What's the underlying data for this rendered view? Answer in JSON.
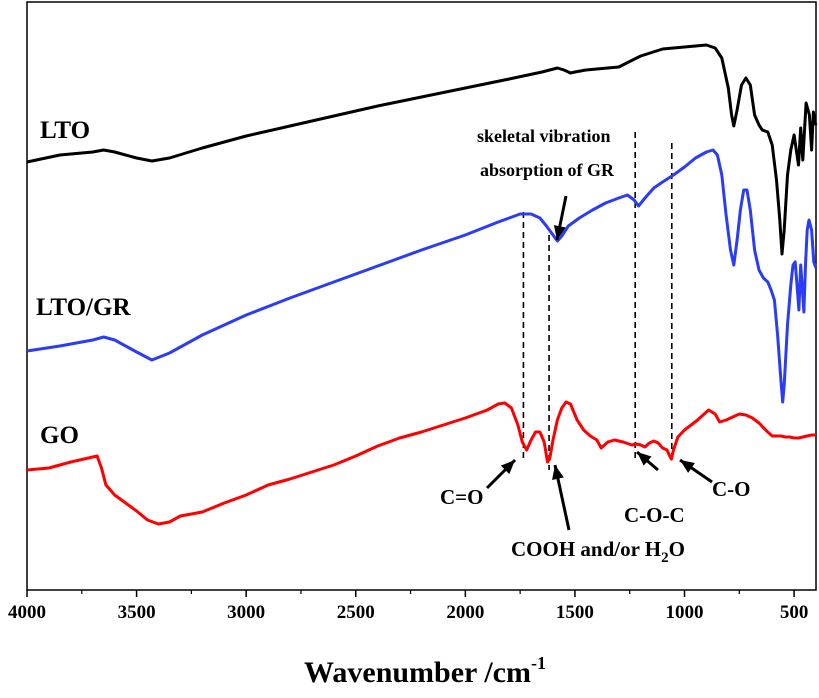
{
  "chart_data": {
    "type": "line",
    "xlabel": "Wavenumber /cm",
    "xlabel_sup": "-1",
    "xlim": [
      4000,
      400
    ],
    "x_ticks": [
      "4000",
      "3500",
      "3000",
      "2500",
      "2000",
      "1500",
      "1000",
      "500"
    ],
    "series": [
      {
        "name": "LTO",
        "color": "#000000",
        "points": [
          [
            4000,
            162
          ],
          [
            3850,
            155
          ],
          [
            3700,
            152
          ],
          [
            3650,
            150
          ],
          [
            3600,
            152
          ],
          [
            3500,
            158
          ],
          [
            3430,
            161
          ],
          [
            3350,
            158
          ],
          [
            3200,
            148
          ],
          [
            3000,
            136
          ],
          [
            2800,
            126
          ],
          [
            2600,
            116
          ],
          [
            2400,
            106
          ],
          [
            2200,
            97
          ],
          [
            2000,
            88
          ],
          [
            1800,
            79
          ],
          [
            1650,
            72
          ],
          [
            1580,
            68
          ],
          [
            1550,
            70
          ],
          [
            1520,
            73
          ],
          [
            1500,
            72
          ],
          [
            1450,
            70
          ],
          [
            1400,
            69
          ],
          [
            1300,
            67
          ],
          [
            1200,
            56
          ],
          [
            1100,
            49
          ],
          [
            1000,
            47
          ],
          [
            950,
            46
          ],
          [
            900,
            45
          ],
          [
            860,
            48
          ],
          [
            830,
            58
          ],
          [
            800,
            88
          ],
          [
            785,
            115
          ],
          [
            775,
            126
          ],
          [
            760,
            110
          ],
          [
            740,
            85
          ],
          [
            720,
            78
          ],
          [
            700,
            85
          ],
          [
            680,
            115
          ],
          [
            660,
            125
          ],
          [
            645,
            130
          ],
          [
            620,
            132
          ],
          [
            600,
            145
          ],
          [
            580,
            180
          ],
          [
            565,
            220
          ],
          [
            555,
            254
          ],
          [
            545,
            230
          ],
          [
            530,
            175
          ],
          [
            515,
            150
          ],
          [
            500,
            135
          ],
          [
            490,
            150
          ],
          [
            480,
            165
          ],
          [
            470,
            128
          ],
          [
            460,
            160
          ],
          [
            445,
            103
          ],
          [
            430,
            115
          ],
          [
            420,
            150
          ],
          [
            412,
            112
          ],
          [
            405,
            122
          ],
          [
            400,
            125
          ]
        ]
      },
      {
        "name": "LTO/GR",
        "color": "#2b3cf5",
        "points": [
          [
            4000,
            351
          ],
          [
            3850,
            346
          ],
          [
            3700,
            340
          ],
          [
            3650,
            337
          ],
          [
            3600,
            340
          ],
          [
            3500,
            352
          ],
          [
            3430,
            360
          ],
          [
            3350,
            353
          ],
          [
            3200,
            335
          ],
          [
            3000,
            315
          ],
          [
            2800,
            298
          ],
          [
            2600,
            282
          ],
          [
            2400,
            266
          ],
          [
            2200,
            250
          ],
          [
            2000,
            235
          ],
          [
            1850,
            222
          ],
          [
            1750,
            214
          ],
          [
            1700,
            214
          ],
          [
            1660,
            218
          ],
          [
            1630,
            226
          ],
          [
            1600,
            235
          ],
          [
            1580,
            241
          ],
          [
            1560,
            236
          ],
          [
            1530,
            226
          ],
          [
            1480,
            218
          ],
          [
            1420,
            210
          ],
          [
            1360,
            203
          ],
          [
            1300,
            198
          ],
          [
            1260,
            195
          ],
          [
            1230,
            200
          ],
          [
            1210,
            206
          ],
          [
            1180,
            198
          ],
          [
            1140,
            188
          ],
          [
            1100,
            182
          ],
          [
            1050,
            175
          ],
          [
            1000,
            167
          ],
          [
            950,
            158
          ],
          [
            900,
            152
          ],
          [
            870,
            150
          ],
          [
            850,
            155
          ],
          [
            830,
            175
          ],
          [
            810,
            215
          ],
          [
            790,
            250
          ],
          [
            775,
            265
          ],
          [
            760,
            240
          ],
          [
            745,
            210
          ],
          [
            730,
            190
          ],
          [
            715,
            190
          ],
          [
            700,
            210
          ],
          [
            680,
            250
          ],
          [
            660,
            270
          ],
          [
            640,
            278
          ],
          [
            620,
            282
          ],
          [
            605,
            290
          ],
          [
            590,
            300
          ],
          [
            575,
            335
          ],
          [
            560,
            380
          ],
          [
            552,
            402
          ],
          [
            545,
            385
          ],
          [
            530,
            325
          ],
          [
            515,
            285
          ],
          [
            505,
            265
          ],
          [
            495,
            262
          ],
          [
            485,
            290
          ],
          [
            478,
            310
          ],
          [
            470,
            265
          ],
          [
            462,
            290
          ],
          [
            455,
            312
          ],
          [
            448,
            265
          ],
          [
            440,
            230
          ],
          [
            432,
            220
          ],
          [
            420,
            230
          ],
          [
            410,
            262
          ],
          [
            400,
            268
          ]
        ]
      },
      {
        "name": "GO",
        "color": "#ff0000",
        "points": [
          [
            4000,
            470
          ],
          [
            3900,
            468
          ],
          [
            3800,
            462
          ],
          [
            3720,
            458
          ],
          [
            3680,
            456
          ],
          [
            3660,
            468
          ],
          [
            3640,
            485
          ],
          [
            3600,
            495
          ],
          [
            3550,
            503
          ],
          [
            3500,
            511
          ],
          [
            3450,
            520
          ],
          [
            3400,
            524
          ],
          [
            3350,
            522
          ],
          [
            3300,
            516
          ],
          [
            3200,
            512
          ],
          [
            3100,
            503
          ],
          [
            3000,
            495
          ],
          [
            2900,
            485
          ],
          [
            2800,
            479
          ],
          [
            2700,
            472
          ],
          [
            2600,
            465
          ],
          [
            2500,
            456
          ],
          [
            2400,
            446
          ],
          [
            2300,
            438
          ],
          [
            2200,
            432
          ],
          [
            2100,
            425
          ],
          [
            2000,
            418
          ],
          [
            1900,
            410
          ],
          [
            1850,
            404
          ],
          [
            1820,
            403
          ],
          [
            1790,
            408
          ],
          [
            1760,
            425
          ],
          [
            1740,
            442
          ],
          [
            1720,
            450
          ],
          [
            1700,
            440
          ],
          [
            1680,
            432
          ],
          [
            1660,
            432
          ],
          [
            1640,
            442
          ],
          [
            1625,
            462
          ],
          [
            1615,
            459
          ],
          [
            1600,
            440
          ],
          [
            1580,
            420
          ],
          [
            1560,
            408
          ],
          [
            1540,
            402
          ],
          [
            1520,
            404
          ],
          [
            1490,
            420
          ],
          [
            1460,
            430
          ],
          [
            1430,
            436
          ],
          [
            1400,
            440
          ],
          [
            1380,
            448
          ],
          [
            1350,
            442
          ],
          [
            1320,
            440
          ],
          [
            1280,
            442
          ],
          [
            1240,
            445
          ],
          [
            1220,
            444
          ],
          [
            1200,
            445
          ],
          [
            1180,
            447
          ],
          [
            1160,
            443
          ],
          [
            1140,
            441
          ],
          [
            1120,
            443
          ],
          [
            1100,
            448
          ],
          [
            1080,
            450
          ],
          [
            1070,
            455
          ],
          [
            1060,
            459
          ],
          [
            1050,
            450
          ],
          [
            1030,
            437
          ],
          [
            1000,
            430
          ],
          [
            970,
            425
          ],
          [
            940,
            420
          ],
          [
            910,
            414
          ],
          [
            890,
            410
          ],
          [
            860,
            414
          ],
          [
            840,
            422
          ],
          [
            810,
            420
          ],
          [
            780,
            417
          ],
          [
            750,
            414
          ],
          [
            720,
            415
          ],
          [
            690,
            418
          ],
          [
            660,
            423
          ],
          [
            630,
            430
          ],
          [
            600,
            436
          ],
          [
            580,
            436
          ],
          [
            560,
            436
          ],
          [
            540,
            437
          ],
          [
            520,
            437
          ],
          [
            500,
            438
          ],
          [
            480,
            438
          ],
          [
            460,
            437
          ],
          [
            440,
            436
          ],
          [
            420,
            435
          ],
          [
            400,
            435
          ]
        ]
      }
    ],
    "dashed_lines_x": [
      1735,
      1618,
      1225,
      1058
    ],
    "series_labels": {
      "lto": "LTO",
      "ltogr": "LTO/GR",
      "go": "GO"
    },
    "annotations": {
      "skeletal_line1": "skeletal vibration",
      "skeletal_line2": "absorption of GR",
      "c_eq_o": "C=O",
      "cooh_text": "COOH and/or H",
      "cooh_sub": "2",
      "cooh_tail": "O",
      "coc": "C-O-C",
      "co": "C-O"
    }
  }
}
